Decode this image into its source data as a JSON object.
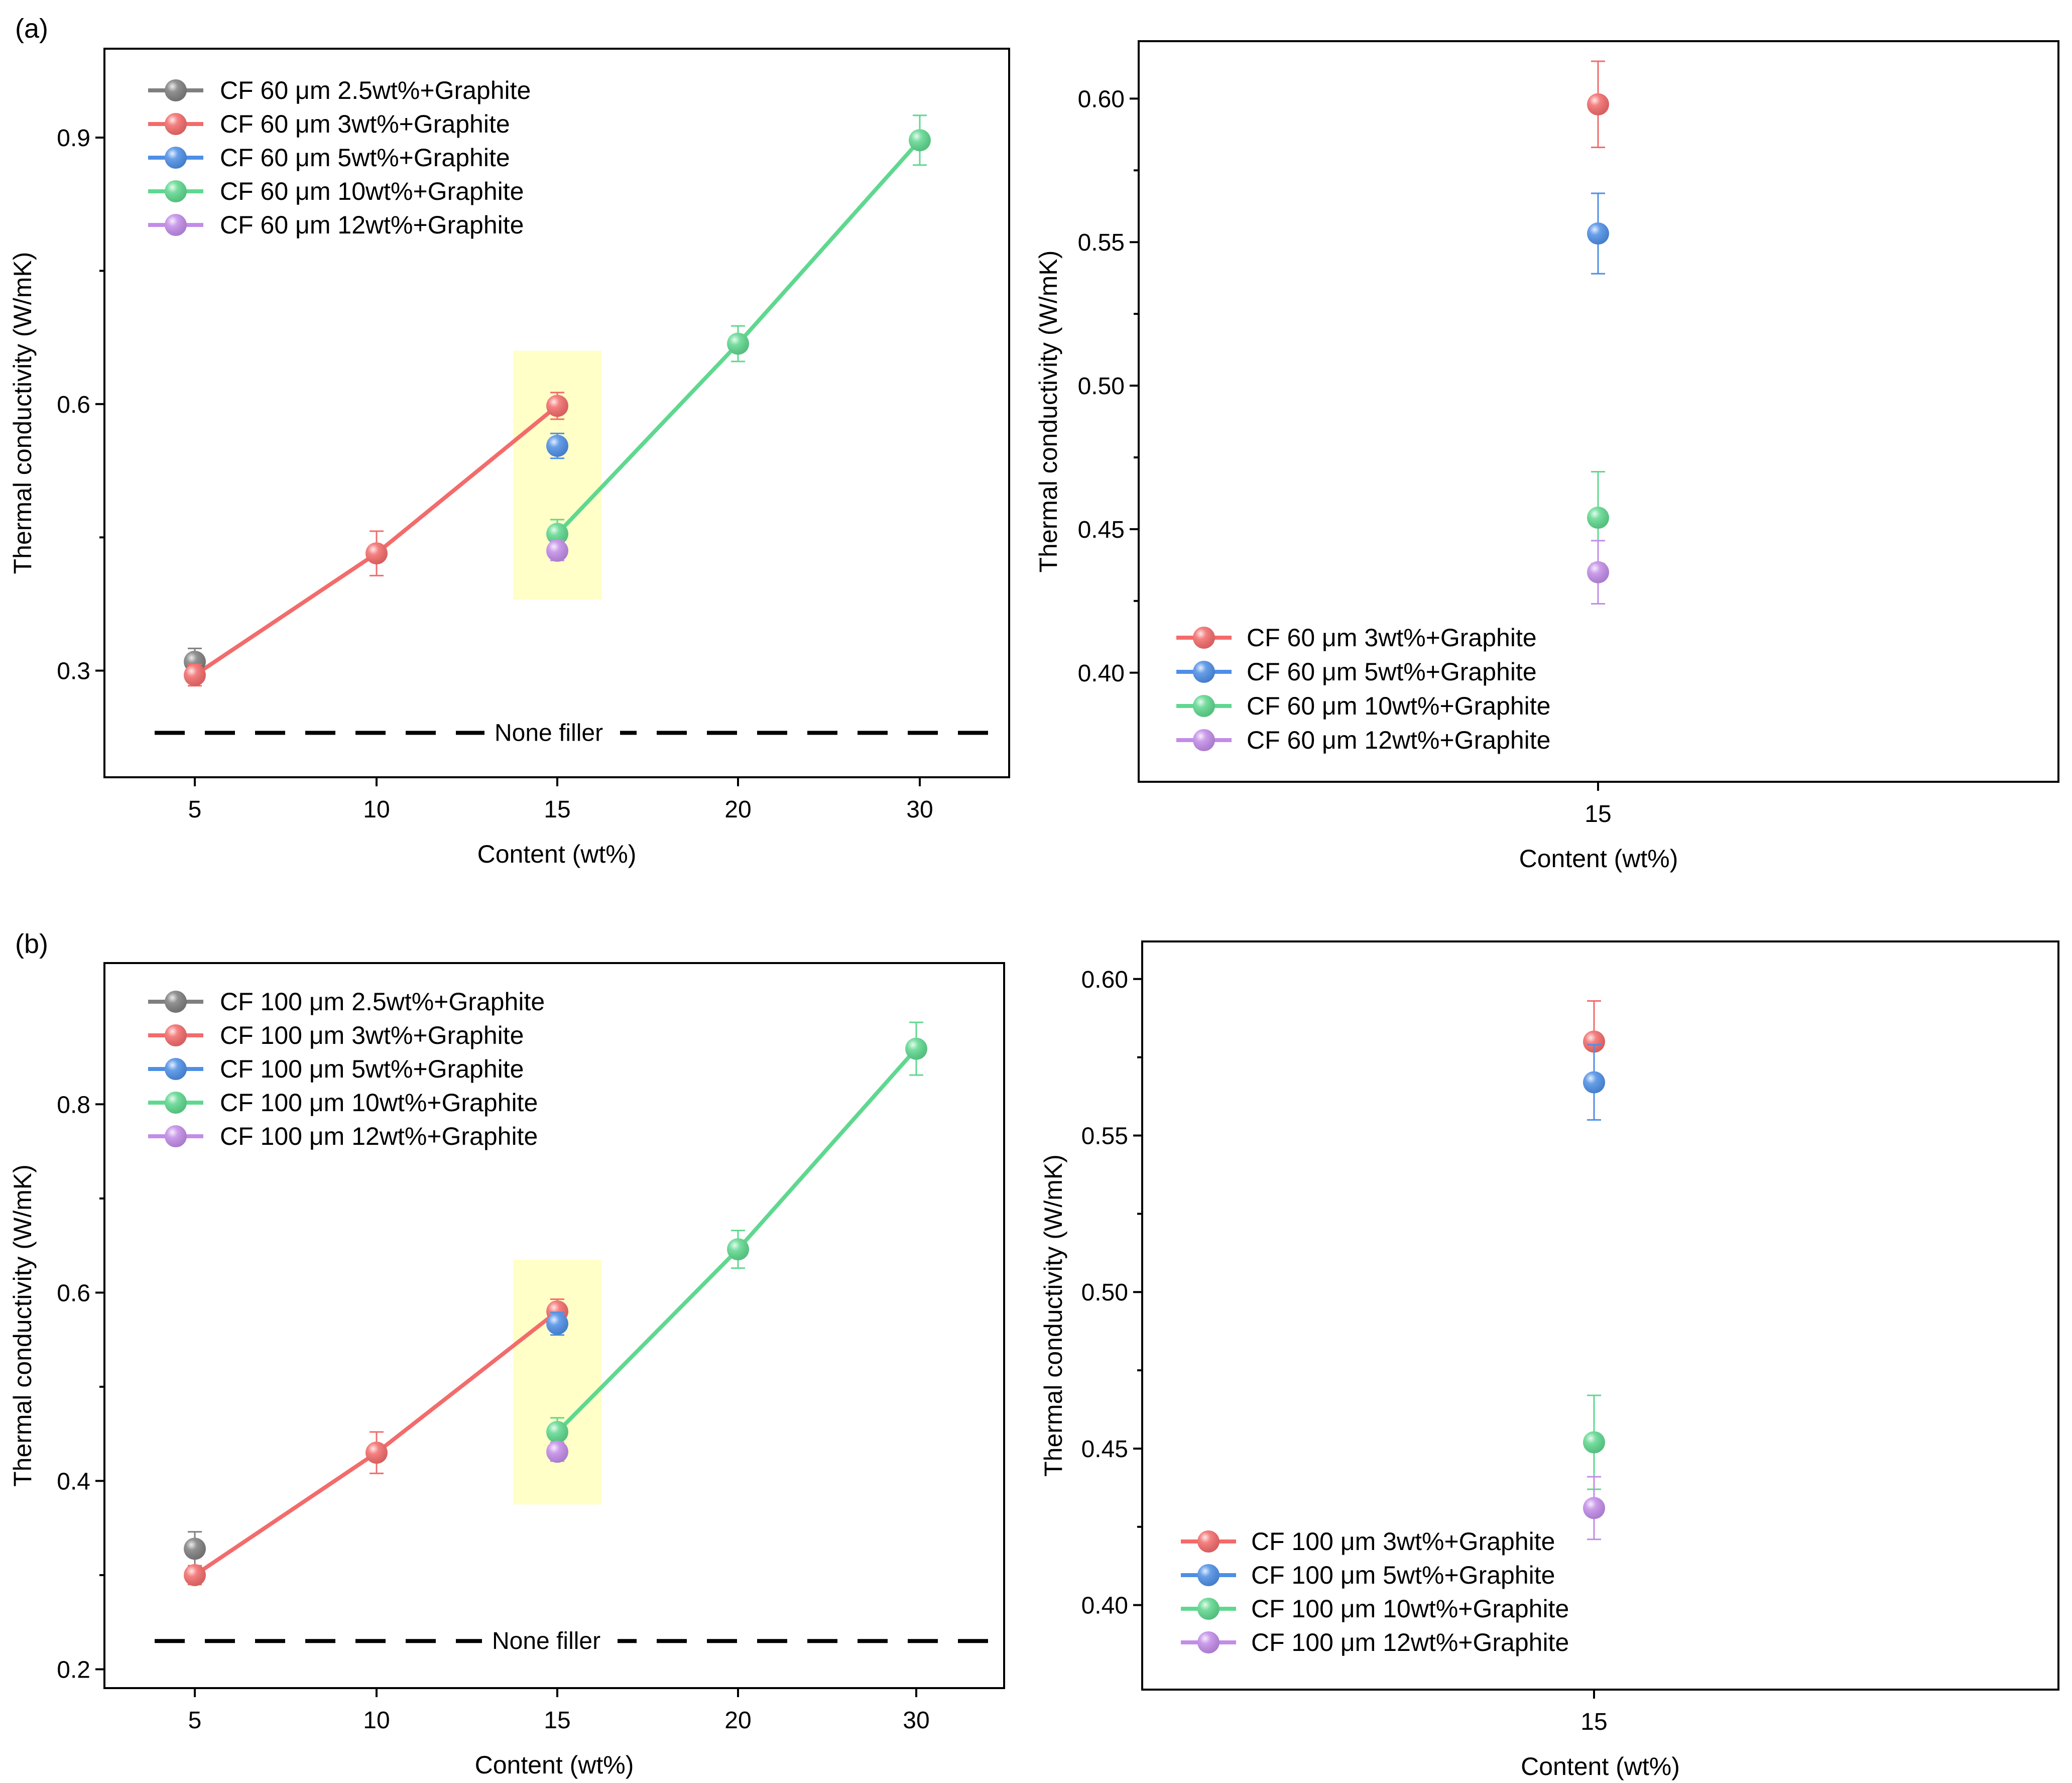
{
  "panel_labels": {
    "a": "(a)",
    "b": "(b)"
  },
  "colors": {
    "gray": "#7f7f7f",
    "red": "#f36b6b",
    "blue": "#4e8fe6",
    "green": "#5fd88f",
    "purple": "#c28ce8",
    "highlight": "#ffff99"
  },
  "none_filler_label": "None filler",
  "chart_data": [
    {
      "id": "a-left",
      "type": "line",
      "xlabel": "Content (wt%)",
      "ylabel": "Thermal conductivity (W/mK)",
      "categories": [
        "5",
        "10",
        "15",
        "20",
        "30"
      ],
      "ylim": [
        0.18,
        1.0
      ],
      "yticks": [
        0.3,
        0.6,
        0.9
      ],
      "yticks_labels": [
        "0.3",
        "0.6",
        "0.9"
      ],
      "baseline": {
        "value": 0.23,
        "label": "None filler"
      },
      "highlight": {
        "category": "15",
        "ymin": 0.38,
        "ymax": 0.66
      },
      "series": [
        {
          "name": "CF 60 μm 2.5wt%+Graphite",
          "color": "#7f7f7f",
          "points": [
            {
              "x": "5",
              "y": 0.31,
              "err": 0.015
            }
          ]
        },
        {
          "name": "CF 60 μm 3wt%+Graphite",
          "color": "#f36b6b",
          "points": [
            {
              "x": "5",
              "y": 0.295,
              "err": 0.012
            },
            {
              "x": "10",
              "y": 0.432,
              "err": 0.025
            },
            {
              "x": "15",
              "y": 0.598,
              "err": 0.015
            }
          ]
        },
        {
          "name": "CF 60 μm 5wt%+Graphite",
          "color": "#4e8fe6",
          "points": [
            {
              "x": "15",
              "y": 0.553,
              "err": 0.014
            }
          ]
        },
        {
          "name": "CF 60 μm 10wt%+Graphite",
          "color": "#5fd88f",
          "points": [
            {
              "x": "15",
              "y": 0.454,
              "err": 0.016
            },
            {
              "x": "20",
              "y": 0.668,
              "err": 0.02
            },
            {
              "x": "30",
              "y": 0.897,
              "err": 0.028
            }
          ]
        },
        {
          "name": "CF 60 μm 12wt%+Graphite",
          "color": "#c28ce8",
          "points": [
            {
              "x": "15",
              "y": 0.435,
              "err": 0.011
            }
          ]
        }
      ]
    },
    {
      "id": "a-right",
      "type": "scatter",
      "xlabel": "Content (wt%)",
      "ylabel": "Thermal conductivity (W/mK)",
      "categories": [
        "15"
      ],
      "ylim": [
        0.362,
        0.62
      ],
      "yticks": [
        0.4,
        0.45,
        0.5,
        0.55,
        0.6
      ],
      "yticks_labels": [
        "0.40",
        "0.45",
        "0.50",
        "0.55",
        "0.60"
      ],
      "series": [
        {
          "name": "CF 60 μm 3wt%+Graphite",
          "color": "#f36b6b",
          "points": [
            {
              "x": "15",
              "y": 0.598,
              "err": 0.015
            }
          ]
        },
        {
          "name": "CF 60 μm 5wt%+Graphite",
          "color": "#4e8fe6",
          "points": [
            {
              "x": "15",
              "y": 0.553,
              "err": 0.014
            }
          ]
        },
        {
          "name": "CF 60 μm 10wt%+Graphite",
          "color": "#5fd88f",
          "points": [
            {
              "x": "15",
              "y": 0.454,
              "err": 0.016
            }
          ]
        },
        {
          "name": "CF 60 μm 12wt%+Graphite",
          "color": "#c28ce8",
          "points": [
            {
              "x": "15",
              "y": 0.435,
              "err": 0.011
            }
          ]
        }
      ]
    },
    {
      "id": "b-left",
      "type": "line",
      "xlabel": "Content (wt%)",
      "ylabel": "Thermal conductivity (W/mK)",
      "categories": [
        "5",
        "10",
        "15",
        "20",
        "30"
      ],
      "ylim": [
        0.18,
        0.95
      ],
      "yticks": [
        0.2,
        0.4,
        0.6,
        0.8
      ],
      "yticks_labels": [
        "0.2",
        "0.4",
        "0.6",
        "0.8"
      ],
      "baseline": {
        "value": 0.23,
        "label": "None filler"
      },
      "highlight": {
        "category": "15",
        "ymin": 0.375,
        "ymax": 0.635
      },
      "series": [
        {
          "name": "CF 100 μm 2.5wt%+Graphite",
          "color": "#7f7f7f",
          "points": [
            {
              "x": "5",
              "y": 0.328,
              "err": 0.018
            }
          ]
        },
        {
          "name": "CF 100 μm 3wt%+Graphite",
          "color": "#f36b6b",
          "points": [
            {
              "x": "5",
              "y": 0.3,
              "err": 0.01
            },
            {
              "x": "10",
              "y": 0.43,
              "err": 0.022
            },
            {
              "x": "15",
              "y": 0.58,
              "err": 0.013
            }
          ]
        },
        {
          "name": "CF 100 μm 5wt%+Graphite",
          "color": "#4e8fe6",
          "points": [
            {
              "x": "15",
              "y": 0.567,
              "err": 0.012
            }
          ]
        },
        {
          "name": "CF 100 μm 10wt%+Graphite",
          "color": "#5fd88f",
          "points": [
            {
              "x": "15",
              "y": 0.452,
              "err": 0.015
            },
            {
              "x": "20",
              "y": 0.646,
              "err": 0.02
            },
            {
              "x": "30",
              "y": 0.859,
              "err": 0.028
            }
          ]
        },
        {
          "name": "CF 100 μm 12wt%+Graphite",
          "color": "#c28ce8",
          "points": [
            {
              "x": "15",
              "y": 0.431,
              "err": 0.01
            }
          ]
        }
      ]
    },
    {
      "id": "b-right",
      "type": "scatter",
      "xlabel": "Content (wt%)",
      "ylabel": "Thermal conductivity (W/mK)",
      "categories": [
        "15"
      ],
      "ylim": [
        0.373,
        0.612
      ],
      "yticks": [
        0.4,
        0.45,
        0.5,
        0.55,
        0.6
      ],
      "yticks_labels": [
        "0.40",
        "0.45",
        "0.50",
        "0.55",
        "0.60"
      ],
      "series": [
        {
          "name": "CF 100 μm 3wt%+Graphite",
          "color": "#f36b6b",
          "points": [
            {
              "x": "15",
              "y": 0.58,
              "err": 0.013
            }
          ]
        },
        {
          "name": "CF 100 μm 5wt%+Graphite",
          "color": "#4e8fe6",
          "points": [
            {
              "x": "15",
              "y": 0.567,
              "err": 0.012
            }
          ]
        },
        {
          "name": "CF 100 μm 10wt%+Graphite",
          "color": "#5fd88f",
          "points": [
            {
              "x": "15",
              "y": 0.452,
              "err": 0.015
            }
          ]
        },
        {
          "name": "CF 100 μm 12wt%+Graphite",
          "color": "#c28ce8",
          "points": [
            {
              "x": "15",
              "y": 0.431,
              "err": 0.01
            }
          ]
        }
      ]
    }
  ]
}
